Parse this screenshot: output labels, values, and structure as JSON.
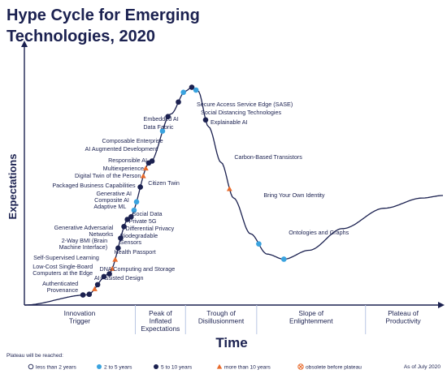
{
  "colors": {
    "navy": "#1b2150",
    "light_blue": "#3aa3df",
    "dark_dot": "#1b2150",
    "orange": "#e86a2b",
    "curve": "#1b2150",
    "divider": "#b9c7e4"
  },
  "header": {
    "title_line1": "Hype Cycle for Emerging",
    "title_line2": "Technologies, 2020"
  },
  "chart_data": {
    "type": "scatter",
    "title": "Hype Cycle for Emerging Technologies, 2020",
    "xlabel": "Time",
    "ylabel": "Expectations",
    "phases": [
      [
        "Innovation",
        "Trigger"
      ],
      [
        "Peak of",
        "Inflated",
        "Expectations"
      ],
      [
        "Trough of",
        "Disillusionment"
      ],
      [
        "Slope of",
        "Enlightenment"
      ],
      [
        "Plateau of",
        "Productivity"
      ]
    ],
    "technologies": [
      {
        "name": "Secure Access Service Edge (SASE)",
        "position": 0.4,
        "plateau": "5 to 10 years",
        "side": "right"
      },
      {
        "name": "Social Distancing Technologies",
        "position": 0.41,
        "plateau": "2 to 5 years",
        "side": "right"
      },
      {
        "name": "Explainable AI",
        "position": 0.433,
        "plateau": "5 to 10 years",
        "side": "right"
      },
      {
        "name": "Embedded AI",
        "position": 0.38,
        "plateau": "2 to 5 years",
        "side": "left"
      },
      {
        "name": "Data Fabric",
        "position": 0.368,
        "plateau": "5 to 10 years",
        "side": "left"
      },
      {
        "name": "Carbon-Based Transistors",
        "position": 0.49,
        "plateau": "more than 10 years",
        "side": "right"
      },
      {
        "name": "Composable Enterprise",
        "position": 0.343,
        "plateau": "5 to 10 years",
        "side": "left"
      },
      {
        "name": "AI Augmented Development",
        "position": 0.33,
        "plateau": "2 to 5 years",
        "side": "left"
      },
      {
        "name": "Responsible AI",
        "position": 0.305,
        "plateau": "5 to 10 years",
        "side": "left"
      },
      {
        "name": "Multiexperience",
        "position": 0.297,
        "plateau": "5 to 10 years",
        "side": "left"
      },
      {
        "name": "Digital Twin of the Person",
        "position": 0.29,
        "plateau": "more than 10 years",
        "side": "left"
      },
      {
        "name": "Citizen Twin",
        "position": 0.284,
        "plateau": "more than 10 years",
        "side": "right"
      },
      {
        "name": "Packaged Business Capabilities",
        "position": 0.277,
        "plateau": "5 to 10 years",
        "side": "left"
      },
      {
        "name": "Generative AI",
        "position": 0.268,
        "plateau": "2 to 5 years",
        "side": "left"
      },
      {
        "name": "Composite AI",
        "position": 0.262,
        "plateau": "2 to 5 years",
        "side": "left"
      },
      {
        "name": "Adaptive ML",
        "position": 0.255,
        "plateau": "5 to 10 years",
        "side": "left"
      },
      {
        "name": "Bring Your Own Identity",
        "position": 0.56,
        "plateau": "2 to 5 years",
        "side": "right"
      },
      {
        "name": "Social Data",
        "position": 0.246,
        "plateau": "5 to 10 years",
        "side": "right"
      },
      {
        "name": "Private 5G",
        "position": 0.238,
        "plateau": "5 to 10 years",
        "side": "right"
      },
      {
        "name": "Differential Privacy",
        "position": 0.23,
        "plateau": "5 to 10 years",
        "side": "right"
      },
      {
        "name": "Generative Adversarial Networks",
        "position": 0.224,
        "plateau": "5 to 10 years",
        "side": "left"
      },
      {
        "name": "Biodegradable Sensors",
        "position": 0.217,
        "plateau": "more than 10 years",
        "side": "right"
      },
      {
        "name": "Ontologies and Graphs",
        "position": 0.62,
        "plateau": "2 to 5 years",
        "side": "right"
      },
      {
        "name": "2-Way BMI (Brain Machine Interface)",
        "position": 0.21,
        "plateau": "more than 10 years",
        "side": "left"
      },
      {
        "name": "Health Passport",
        "position": 0.203,
        "plateau": "5 to 10 years",
        "side": "right"
      },
      {
        "name": "Self-Supervised Learning",
        "position": 0.19,
        "plateau": "5 to 10 years",
        "side": "left"
      },
      {
        "name": "Low-Cost Single-Board Computers at the Edge",
        "position": 0.175,
        "plateau": "5 to 10 years",
        "side": "left"
      },
      {
        "name": "DNA Computing and Storage",
        "position": 0.168,
        "plateau": "more than 10 years",
        "side": "right"
      },
      {
        "name": "AI-Assisted Design",
        "position": 0.155,
        "plateau": "5 to 10 years",
        "side": "right"
      },
      {
        "name": "Authenticated Provenance",
        "position": 0.14,
        "plateau": "5 to 10 years",
        "side": "left"
      }
    ],
    "legend": {
      "title": "Plateau will be reached:",
      "items": [
        {
          "label": "less than 2 years",
          "marker": "open-circle"
        },
        {
          "label": "2 to 5 years",
          "marker": "light-blue-circle"
        },
        {
          "label": "5 to 10 years",
          "marker": "navy-circle"
        },
        {
          "label": "more than 10 years",
          "marker": "orange-triangle"
        },
        {
          "label": "obsolete before plateau",
          "marker": "crossed-circle"
        }
      ],
      "as_of": "As of July 2020"
    }
  }
}
